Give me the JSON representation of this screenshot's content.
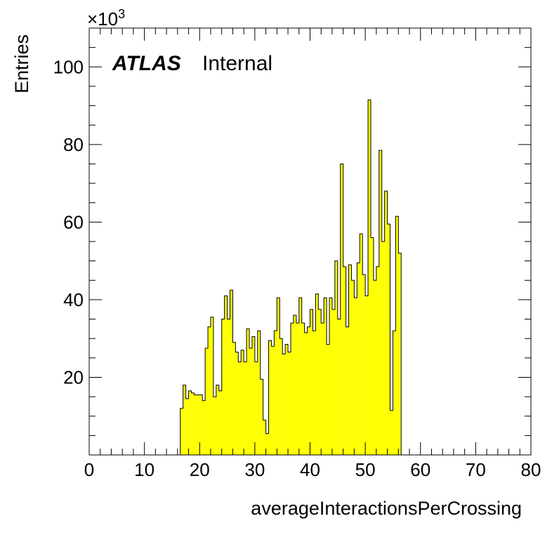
{
  "chart_data": {
    "type": "bar",
    "xlabel": "averageInteractionsPerCrossing",
    "ylabel": "Entries",
    "y_multiplier_label": "×10",
    "y_multiplier_exponent": "3",
    "annotation": {
      "bold": "ATLAS",
      "normal": "Internal"
    },
    "xlim": [
      0,
      80
    ],
    "ylim": [
      0,
      110
    ],
    "xticks": [
      0,
      10,
      20,
      30,
      40,
      50,
      60,
      70,
      80
    ],
    "yticks": [
      20,
      40,
      60,
      80,
      100
    ],
    "bin_width": 0.5,
    "x_start": 16.5,
    "values": [
      12,
      18,
      14.5,
      16.5,
      16,
      15.5,
      15.5,
      15.5,
      14,
      27.5,
      33,
      35.5,
      15,
      18,
      16.5,
      35,
      41,
      35,
      42.5,
      29,
      26.5,
      24,
      27,
      24,
      32.5,
      27.5,
      30.5,
      24,
      32,
      19.5,
      9,
      5.5,
      29.5,
      28,
      32,
      40.5,
      30,
      26,
      28.5,
      26.5,
      34,
      36,
      34,
      40.5,
      34,
      31.5,
      33,
      37.5,
      32,
      41.5,
      37.5,
      34,
      40.5,
      28.5,
      40.5,
      37.5,
      50,
      35,
      75,
      48.5,
      33,
      49,
      45,
      40.5,
      49.5,
      57,
      46.5,
      41,
      91.5,
      56,
      45,
      48.5,
      78.5,
      55,
      68,
      59.5,
      11.5,
      32,
      61.5,
      52
    ],
    "fill_color": "#ffff00",
    "line_color": "#000000"
  }
}
